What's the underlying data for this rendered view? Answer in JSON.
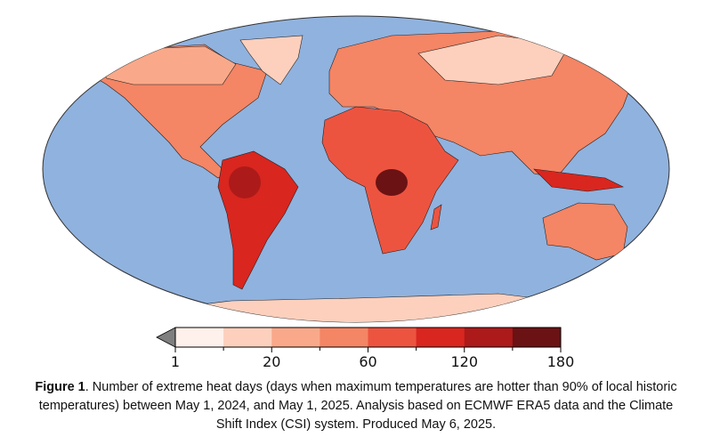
{
  "colors": {
    "ocean": "#90b2de",
    "under": "#7f7f7f",
    "bins": [
      "#fef0ea",
      "#fcd0bd",
      "#f9a98a",
      "#f48565",
      "#ec5440",
      "#d9261f",
      "#ad1a1a",
      "#6b1214"
    ]
  },
  "colorbar": {
    "ticks": [
      "1",
      "20",
      "60",
      "120",
      "180"
    ],
    "min": 1,
    "max": 180,
    "extend": "min"
  },
  "caption": {
    "label": "Figure 1",
    "text": ". Number of extreme heat days (days when maximum temperatures are hotter than 90% of local historic temperatures) between May 1, 2024, and May 1, 2025. Analysis based on ECMWF ERA5 data and the Climate Shift Index (CSI) system. Produced May 6, 2025."
  }
}
